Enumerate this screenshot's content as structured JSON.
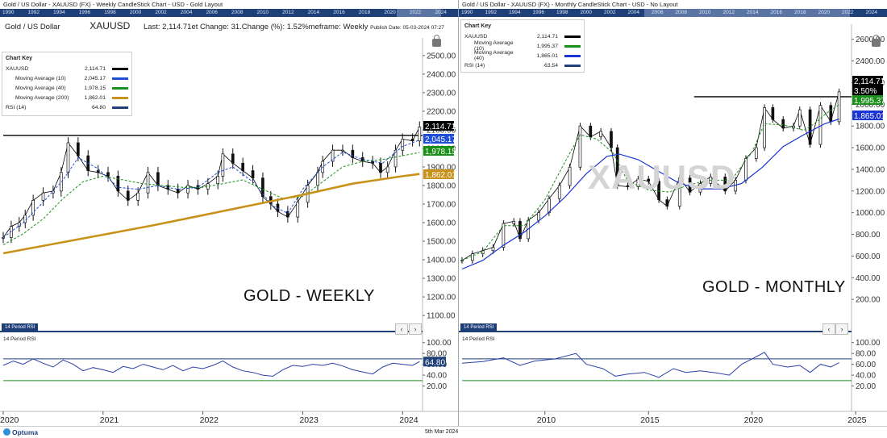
{
  "footer": {
    "brand": "Optuma",
    "date": "5th Mar 2024"
  },
  "colors": {
    "navy": "#1f3f78",
    "ma10_weekly": "#1e4fd8",
    "ma40": "#1a8f1a",
    "ma200": "#c8921a",
    "rsi": "#1f3f78",
    "ma40_monthly": "#1a34d6",
    "price_line": "#000000"
  },
  "weekly": {
    "title_line": "Gold / US Dollar - XAUUSD (FX) - Weekly CandleStick Chart - USD - Gold Layout",
    "info_name": "Gold / US Dollar",
    "info_symbol": "XAUUSD",
    "info_text": "Last: 2,114.71et Change: 31.Change (%): 1.52%meframe: Weekly",
    "publish": "Publish Date: 05-03-2024 07:27",
    "timebar_years": [
      "1990",
      "1992",
      "1994",
      "1996",
      "1998",
      "2000",
      "2002",
      "2004",
      "2006",
      "2008",
      "2010",
      "2012",
      "2014",
      "2016",
      "2018",
      "2020",
      "2022",
      "2024"
    ],
    "chart_key": {
      "title": "Chart Key",
      "rows": [
        {
          "name": "XAUUSD",
          "value": "2,114.71",
          "color": "#000000"
        },
        {
          "name": "Moving Average (10)",
          "value": "2,045.17",
          "color": "#1e4fd8"
        },
        {
          "name": "Moving Average (40)",
          "value": "1,978.15",
          "color": "#1a8f1a"
        },
        {
          "name": "Moving Average (200)",
          "value": "1,862.01",
          "color": "#c8921a"
        },
        {
          "name": "RSI (14)",
          "value": "64.80",
          "color": "#1f3f78"
        }
      ]
    },
    "big_label": "GOLD - WEEKLY",
    "rsi_tab": "14 Period RSI",
    "rsi_title": "14 Period RSI",
    "rsi_value_label": "64.80"
  },
  "monthly": {
    "title_line": "Gold / US Dollar - XAUUSD (FX) - Monthly CandleStick Chart - USD - No Layout",
    "timebar_years": [
      "1990",
      "1992",
      "1994",
      "1996",
      "1998",
      "2000",
      "2002",
      "2004",
      "2006",
      "2008",
      "2010",
      "2012",
      "2014",
      "2016",
      "2018",
      "2020",
      "2022",
      "2024"
    ],
    "chart_key": {
      "title": "Chart Key",
      "rows": [
        {
          "name": "XAUUSD",
          "value": "2,114.71",
          "color": "#000000"
        },
        {
          "name": "Moving Average (10)",
          "value": "1,995.37",
          "color": "#1a8f1a"
        },
        {
          "name": "Moving Average (40)",
          "value": "1,865.01",
          "color": "#1a34d6"
        },
        {
          "name": "RSI (14)",
          "value": "63.54",
          "color": "#1f3f78"
        }
      ]
    },
    "big_label": "GOLD - MONTHLY",
    "watermark": "XAUUSD",
    "rsi_tab": "14 Period RSI",
    "rsi_title": "14 Period RSI"
  },
  "chart_data": [
    {
      "type": "line",
      "title": "Gold / US Dollar - XAUUSD (FX) - Weekly CandleStick Chart - USD - Gold Layout",
      "xlabel": "",
      "ylabel": "",
      "xlim": [
        2020.0,
        2024.2
      ],
      "ylim": [
        1070,
        2560
      ],
      "x_ticks": [
        "2020",
        "2021",
        "2022",
        "2023",
        "2024"
      ],
      "y_ticks": [
        "1100.00",
        "1200.00",
        "1300.00",
        "1400.00",
        "1500.00",
        "1600.00",
        "1700.00",
        "1800.00",
        "1900.00",
        "2000.00",
        "2100.00",
        "2200.00",
        "2300.00",
        "2400.00",
        "2500.00"
      ],
      "resistance": 2070,
      "value_labels": [
        "2,114.71",
        "2,045.17",
        "1,978.15",
        "1,862.01"
      ],
      "series": [
        {
          "name": "XAUUSD",
          "x": [
            2020.0,
            2020.08,
            2020.16,
            2020.22,
            2020.3,
            2020.4,
            2020.5,
            2020.58,
            2020.65,
            2020.75,
            2020.85,
            2020.95,
            2021.05,
            2021.15,
            2021.25,
            2021.35,
            2021.45,
            2021.55,
            2021.65,
            2021.75,
            2021.85,
            2021.95,
            2022.05,
            2022.15,
            2022.2,
            2022.3,
            2022.4,
            2022.5,
            2022.6,
            2022.68,
            2022.75,
            2022.85,
            2022.95,
            2023.05,
            2023.15,
            2023.2,
            2023.3,
            2023.4,
            2023.5,
            2023.6,
            2023.7,
            2023.78,
            2023.85,
            2023.93,
            2024.0,
            2024.1,
            2024.17
          ],
          "values": [
            1520,
            1580,
            1600,
            1640,
            1720,
            1760,
            1770,
            1870,
            2030,
            1960,
            1880,
            1870,
            1850,
            1770,
            1720,
            1760,
            1870,
            1800,
            1780,
            1760,
            1800,
            1780,
            1810,
            1850,
            1970,
            1920,
            1880,
            1840,
            1740,
            1700,
            1660,
            1630,
            1710,
            1800,
            1870,
            1930,
            1990,
            1990,
            1950,
            1930,
            1920,
            1870,
            1900,
            1990,
            2050,
            2040,
            2115
          ]
        },
        {
          "name": "Moving Average (10)",
          "x": [
            2020.0,
            2020.2,
            2020.4,
            2020.6,
            2020.75,
            2020.95,
            2021.15,
            2021.35,
            2021.55,
            2021.75,
            2021.95,
            2022.15,
            2022.3,
            2022.5,
            2022.7,
            2022.85,
            2023.0,
            2023.2,
            2023.4,
            2023.6,
            2023.8,
            2024.0,
            2024.17
          ],
          "values": [
            1520,
            1600,
            1710,
            1830,
            1950,
            1890,
            1790,
            1780,
            1800,
            1780,
            1790,
            1870,
            1900,
            1820,
            1690,
            1650,
            1780,
            1900,
            1980,
            1940,
            1920,
            2010,
            2045
          ]
        },
        {
          "name": "Moving Average (40)",
          "x": [
            2020.0,
            2020.2,
            2020.4,
            2020.6,
            2020.8,
            2021.0,
            2021.2,
            2021.4,
            2021.6,
            2021.8,
            2022.0,
            2022.2,
            2022.4,
            2022.6,
            2022.8,
            2023.0,
            2023.2,
            2023.4,
            2023.6,
            2023.8,
            2024.0,
            2024.17
          ],
          "values": [
            1480,
            1540,
            1620,
            1730,
            1820,
            1850,
            1830,
            1810,
            1800,
            1790,
            1790,
            1810,
            1830,
            1780,
            1730,
            1740,
            1820,
            1900,
            1930,
            1940,
            1960,
            1978
          ]
        },
        {
          "name": "Moving Average (200)",
          "x": [
            2020.0,
            2020.5,
            2021.0,
            2021.5,
            2022.0,
            2022.5,
            2023.0,
            2023.5,
            2024.0,
            2024.17
          ],
          "values": [
            1435,
            1485,
            1535,
            1585,
            1640,
            1695,
            1750,
            1810,
            1850,
            1862
          ]
        }
      ]
    },
    {
      "type": "line",
      "title": "14 Period RSI (Weekly)",
      "xlim": [
        2020.0,
        2024.2
      ],
      "ylim": [
        0,
        110
      ],
      "y_ticks": [
        "20.00",
        "40.00",
        "60.00",
        "80.00",
        "100.00"
      ],
      "guides": [
        70,
        30
      ],
      "series": [
        {
          "name": "RSI (14)",
          "x": [
            2020.0,
            2020.1,
            2020.2,
            2020.3,
            2020.4,
            2020.5,
            2020.6,
            2020.7,
            2020.8,
            2020.9,
            2021.0,
            2021.1,
            2021.2,
            2021.3,
            2021.4,
            2021.5,
            2021.6,
            2021.7,
            2021.8,
            2021.9,
            2022.0,
            2022.1,
            2022.2,
            2022.3,
            2022.4,
            2022.5,
            2022.6,
            2022.7,
            2022.8,
            2022.9,
            2023.0,
            2023.1,
            2023.2,
            2023.3,
            2023.4,
            2023.5,
            2023.6,
            2023.7,
            2023.8,
            2023.9,
            2024.0,
            2024.1,
            2024.17
          ],
          "values": [
            58,
            66,
            60,
            70,
            62,
            55,
            68,
            60,
            48,
            54,
            50,
            45,
            56,
            52,
            60,
            55,
            50,
            58,
            48,
            55,
            52,
            58,
            66,
            55,
            48,
            45,
            40,
            38,
            50,
            58,
            56,
            60,
            58,
            62,
            57,
            50,
            46,
            42,
            55,
            62,
            60,
            58,
            65
          ]
        }
      ]
    },
    {
      "type": "line",
      "title": "Gold / US Dollar - XAUUSD (FX) - Monthly CandleStick Chart - USD - No Layout",
      "xlabel": "",
      "ylabel": "",
      "xlim": [
        2006.0,
        2024.8
      ],
      "ylim": [
        0,
        2680
      ],
      "x_ticks": [
        "2010",
        "2015",
        "2020",
        "2025"
      ],
      "y_ticks": [
        "200.00",
        "400.00",
        "600.00",
        "800.00",
        "1000.00",
        "1200.00",
        "1400.00",
        "1600.00",
        "1800.00",
        "2000.00",
        "2200.00",
        "2400.00",
        "2600.00"
      ],
      "resistance": 2070,
      "value_labels": [
        "2,114.71",
        "3.50%",
        "1,995.37",
        "1,865.01"
      ],
      "series": [
        {
          "name": "XAUUSD",
          "x": [
            2006.0,
            2006.5,
            2007.0,
            2007.5,
            2008.0,
            2008.5,
            2008.8,
            2009.2,
            2009.7,
            2010.2,
            2010.7,
            2011.2,
            2011.7,
            2012.2,
            2012.7,
            2013.2,
            2013.5,
            2014.0,
            2014.5,
            2015.0,
            2015.5,
            2015.9,
            2016.5,
            2017.0,
            2017.5,
            2018.0,
            2018.7,
            2019.2,
            2019.7,
            2020.2,
            2020.6,
            2021.0,
            2021.5,
            2022.0,
            2022.3,
            2022.8,
            2023.3,
            2023.8,
            2024.2
          ],
          "values": [
            560,
            620,
            650,
            680,
            900,
            920,
            760,
            930,
            1000,
            1130,
            1250,
            1420,
            1800,
            1700,
            1750,
            1600,
            1250,
            1240,
            1310,
            1290,
            1120,
            1060,
            1320,
            1190,
            1270,
            1330,
            1200,
            1300,
            1500,
            1600,
            1970,
            1860,
            1780,
            1800,
            1950,
            1630,
            1990,
            1840,
            2115
          ]
        },
        {
          "name": "Moving Average (10)",
          "x": [
            2006.0,
            2007.0,
            2008.0,
            2009.0,
            2010.0,
            2011.0,
            2011.7,
            2012.5,
            2013.3,
            2014.0,
            2015.0,
            2016.0,
            2017.0,
            2018.0,
            2019.0,
            2020.0,
            2020.6,
            2021.5,
            2022.5,
            2023.0,
            2023.6,
            2024.2
          ],
          "values": [
            560,
            640,
            880,
            880,
            1120,
            1480,
            1720,
            1680,
            1550,
            1290,
            1210,
            1190,
            1260,
            1300,
            1300,
            1560,
            1820,
            1810,
            1760,
            1820,
            1920,
            1995
          ]
        },
        {
          "name": "Moving Average (40)",
          "x": [
            2006.0,
            2007.0,
            2008.0,
            2009.0,
            2010.0,
            2011.0,
            2012.0,
            2013.0,
            2013.6,
            2014.5,
            2015.5,
            2016.5,
            2017.5,
            2018.5,
            2019.5,
            2020.5,
            2021.5,
            2022.5,
            2023.5,
            2024.2
          ],
          "values": [
            480,
            560,
            700,
            820,
            970,
            1150,
            1360,
            1520,
            1540,
            1490,
            1380,
            1270,
            1220,
            1220,
            1270,
            1420,
            1610,
            1720,
            1820,
            1865
          ]
        }
      ]
    },
    {
      "type": "line",
      "title": "14 Period RSI (Monthly)",
      "xlim": [
        2006.0,
        2024.8
      ],
      "ylim": [
        0,
        110
      ],
      "y_ticks": [
        "20.00",
        "40.00",
        "60.00",
        "80.00",
        "100.00"
      ],
      "guides": [
        70,
        30
      ],
      "series": [
        {
          "name": "RSI (14)",
          "x": [
            2006.0,
            2007.0,
            2008.0,
            2008.8,
            2009.5,
            2010.5,
            2011.5,
            2012.0,
            2012.8,
            2013.4,
            2014.0,
            2014.8,
            2015.5,
            2016.2,
            2016.8,
            2017.5,
            2018.3,
            2018.9,
            2019.5,
            2020.0,
            2020.6,
            2021.0,
            2021.7,
            2022.3,
            2022.8,
            2023.3,
            2023.8,
            2024.2
          ],
          "values": [
            62,
            65,
            72,
            58,
            66,
            70,
            80,
            60,
            52,
            38,
            42,
            45,
            36,
            52,
            45,
            48,
            44,
            40,
            60,
            70,
            82,
            60,
            55,
            58,
            45,
            60,
            55,
            63
          ]
        }
      ]
    }
  ]
}
